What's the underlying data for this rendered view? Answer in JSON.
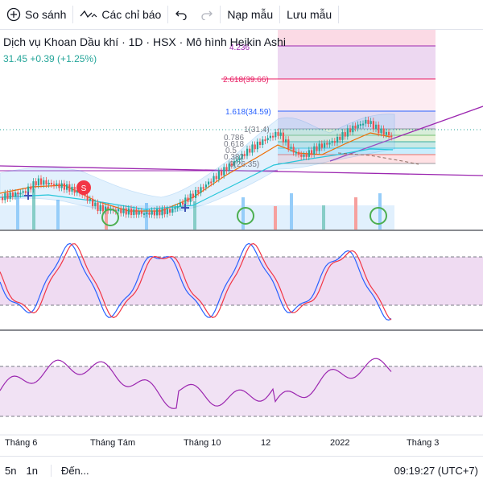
{
  "toolbar": {
    "compare_label": "So sánh",
    "indicators_label": "Các chỉ báo",
    "templates_label": "Nạp mẫu",
    "save_label": "Lưu mẫu"
  },
  "legend": {
    "title": "Dịch vụ Khoan Dầu khí · 1D · HSX · Mô hình Heikin Ashi",
    "price_change": "31.45 +0.39 (+1.25%)"
  },
  "fib_levels": [
    {
      "label": "4.236",
      "color": "#9c27b0"
    },
    {
      "label": "2.618(39.66)",
      "color": "#e91e63"
    },
    {
      "label": "1.618(34.59)",
      "color": "#2962ff"
    },
    {
      "label": "1(31.4)",
      "color": "#787b86"
    },
    {
      "label": "0.786",
      "color": "#787b86"
    },
    {
      "label": "0.618",
      "color": "#787b86"
    },
    {
      "label": "0.5",
      "color": "#787b86"
    },
    {
      "label": "0.382",
      "color": "#787b86"
    },
    {
      "label": "0(26.35)",
      "color": "#787b86"
    }
  ],
  "signal_marker": "S",
  "x_axis": [
    "Tháng 6",
    "Tháng Tám",
    "Tháng 10",
    "12",
    "2022",
    "Tháng 3"
  ],
  "bottom": {
    "range_5d": "5n",
    "range_1d": "1n",
    "goto": "Đến...",
    "clock": "09:19:27 (UTC+7)"
  },
  "colors": {
    "up": "#26a69a",
    "down": "#ef5350",
    "stoch_k": "#2962ff",
    "stoch_d": "#f23645",
    "rsi": "#9c27b0"
  }
}
